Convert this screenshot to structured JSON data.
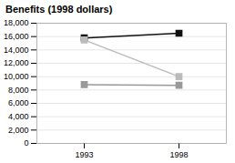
{
  "chart_data": {
    "type": "line",
    "title": "Benefits (1998 dollars)",
    "x": [
      1993,
      1998
    ],
    "series": [
      {
        "color": "#111111",
        "marker": "square",
        "values": [
          15800,
          16500
        ]
      },
      {
        "color": "#bbbbbb",
        "marker": "square",
        "values": [
          15500,
          10000
        ]
      },
      {
        "color": "#999999",
        "marker": "square",
        "values": [
          8800,
          8700
        ]
      }
    ],
    "xlim": [
      1990.5,
      2000.5
    ],
    "xticks": [
      1993,
      1998
    ],
    "ylim": [
      0,
      18000
    ],
    "yticks": [
      0,
      {
        "value": 2000,
        "label": "2,000"
      },
      {
        "value": 4000,
        "label": "4,000"
      },
      {
        "value": 6000,
        "label": "6,000"
      },
      {
        "value": 8000,
        "label": "8,000"
      },
      {
        "value": 10000,
        "label": "10,000"
      },
      {
        "value": 12000,
        "label": "12,000"
      },
      {
        "value": 14000,
        "label": "14,000"
      },
      {
        "value": 16000,
        "label": "16,000"
      },
      {
        "value": 18000,
        "label": "18,000"
      }
    ],
    "grid": true
  }
}
